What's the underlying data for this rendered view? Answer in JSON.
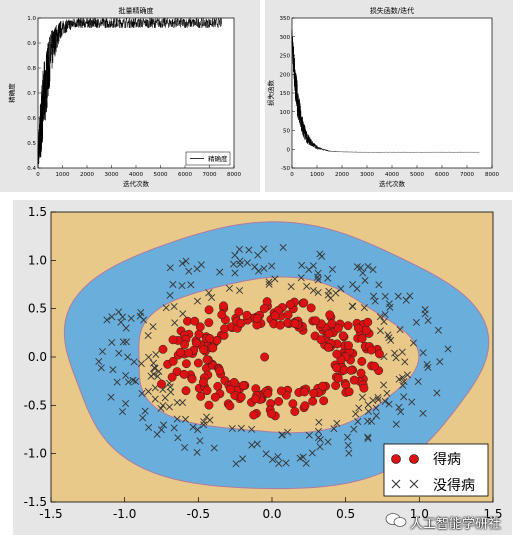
{
  "chart_data": [
    {
      "type": "line",
      "title": "批量精确度",
      "xlabel": "迭代次数",
      "ylabel": "精确度",
      "xlim": [
        0,
        8000
      ],
      "ylim": [
        0.4,
        1.0
      ],
      "xticks": [
        "0",
        "1000",
        "2000",
        "3000",
        "4000",
        "5000",
        "6000",
        "7000",
        "8000"
      ],
      "yticks": [
        "0.4",
        "0.5",
        "0.6",
        "0.7",
        "0.8",
        "0.9",
        "1.0"
      ],
      "series": [
        {
          "name": "精确度",
          "x": [
            0,
            100,
            200,
            300,
            400,
            500,
            600,
            700,
            800,
            900,
            1000,
            1200,
            1500,
            2000,
            3000,
            4000,
            5000,
            6000,
            7000,
            7500
          ],
          "values": [
            0.45,
            0.55,
            0.65,
            0.72,
            0.78,
            0.84,
            0.88,
            0.91,
            0.93,
            0.95,
            0.96,
            0.97,
            0.98,
            0.98,
            0.98,
            0.98,
            0.98,
            0.98,
            0.98,
            0.98
          ],
          "noise": [
            0.05,
            0.12,
            0.14,
            0.14,
            0.12,
            0.1,
            0.08,
            0.06,
            0.05,
            0.04,
            0.03,
            0.025,
            0.02,
            0.02,
            0.02,
            0.02,
            0.02,
            0.02,
            0.02,
            0.02
          ]
        }
      ],
      "legend": "lower-right"
    },
    {
      "type": "line",
      "title": "损失函数/迭代",
      "xlabel": "迭代次数",
      "ylabel": "损失函数",
      "xlim": [
        0,
        8000
      ],
      "ylim": [
        -50,
        350
      ],
      "xticks": [
        "0",
        "1000",
        "2000",
        "3000",
        "4000",
        "5000",
        "6000",
        "7000",
        "8000"
      ],
      "yticks": [
        "-50",
        "0",
        "50",
        "100",
        "150",
        "200",
        "250",
        "300",
        "350"
      ],
      "series": [
        {
          "x": [
            0,
            50,
            100,
            200,
            300,
            400,
            500,
            600,
            800,
            1000,
            1200,
            1500,
            2000,
            3000,
            4000,
            5000,
            6000,
            7000,
            7500
          ],
          "values": [
            300,
            250,
            200,
            140,
            95,
            65,
            45,
            30,
            15,
            5,
            0,
            -5,
            -7,
            -8,
            -8,
            -8,
            -8,
            -8,
            -8
          ],
          "noise": [
            20,
            40,
            50,
            45,
            40,
            30,
            22,
            15,
            8,
            5,
            2,
            1,
            0.5,
            0.5,
            0.5,
            0.5,
            0.5,
            0.5,
            0.5
          ]
        }
      ],
      "legend": "none"
    },
    {
      "type": "scatter",
      "xlim": [
        -1.5,
        1.5
      ],
      "ylim": [
        -1.5,
        1.5
      ],
      "xticks": [
        "-1.5",
        "-1.0",
        "-0.5",
        "0.0",
        "0.5",
        "1.0",
        "1.5"
      ],
      "yticks": [
        "-1.5",
        "-1.0",
        "-0.5",
        "0.0",
        "0.5",
        "1.0",
        "1.5"
      ],
      "series": [
        {
          "name": "得病",
          "marker": "circle",
          "color": "#dd1111",
          "radius_range": [
            0.1,
            0.7
          ],
          "count": 250
        },
        {
          "name": "没得病",
          "marker": "x",
          "color": "#333333",
          "radius_range": [
            0.75,
            1.2
          ],
          "count": 240
        }
      ],
      "decision_regions": {
        "inner": "#e8c98a",
        "ring": "#6aaedb",
        "outer": "#e8c98a"
      },
      "legend": "lower-right"
    }
  ],
  "watermark": "人工智能学研社"
}
